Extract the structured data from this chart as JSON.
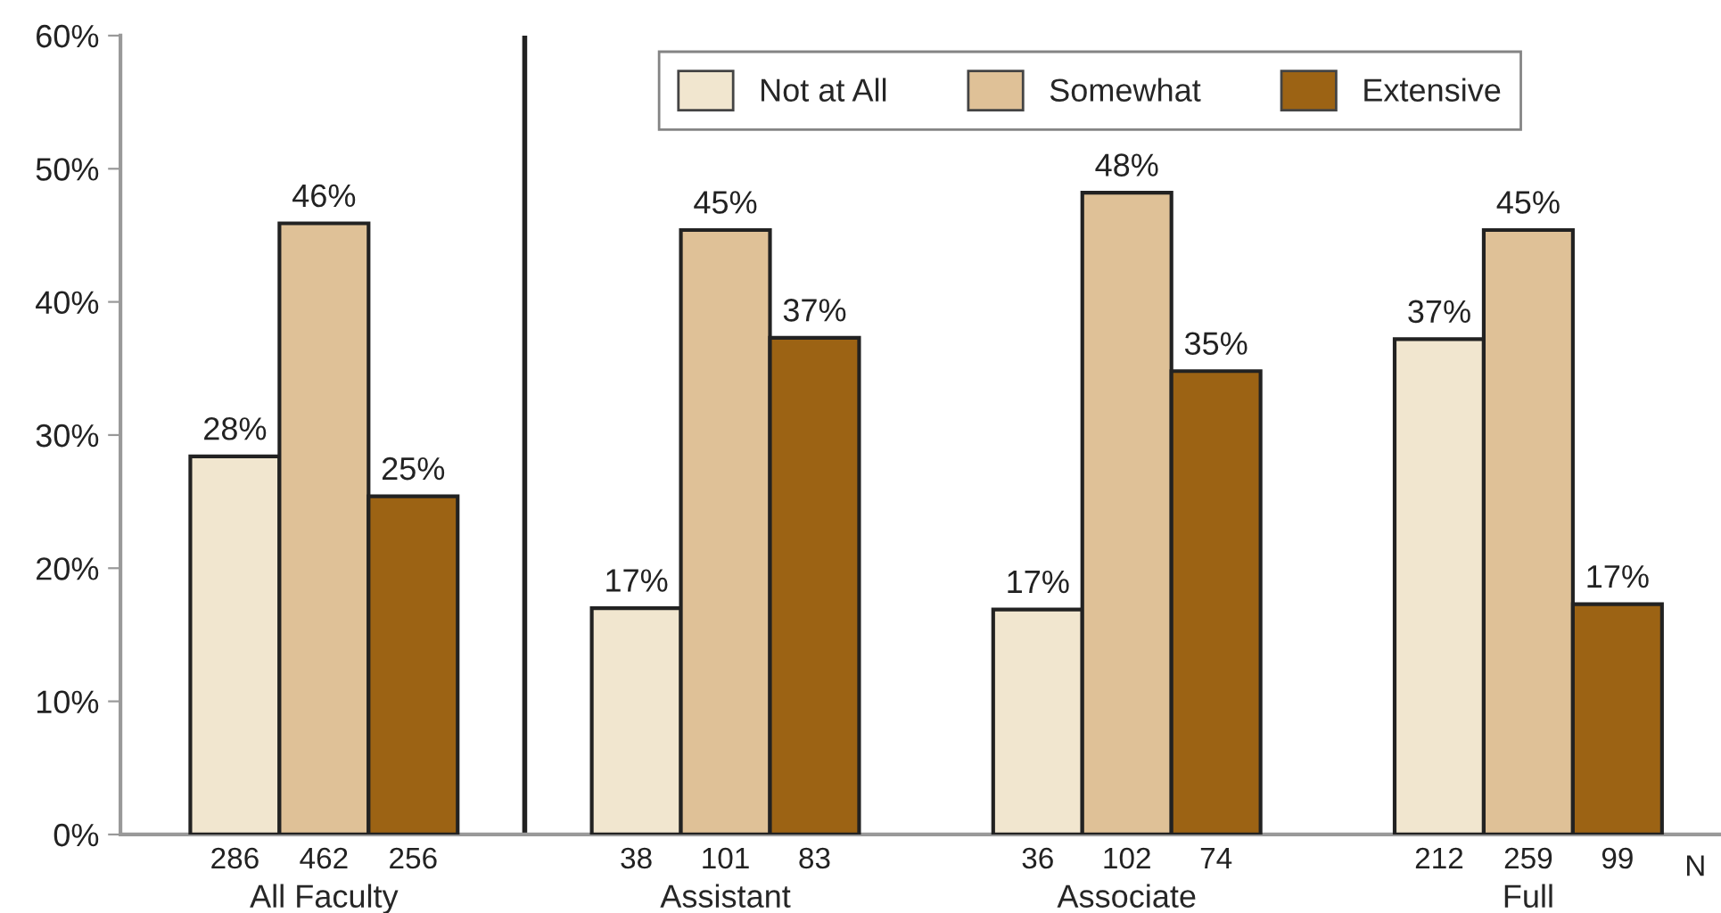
{
  "chart_data": {
    "type": "bar",
    "categories": [
      "All Faculty",
      "Assistant",
      "Associate",
      "Full"
    ],
    "series": [
      {
        "name": "Not at All",
        "color": "#f1e6cf",
        "values": [
          28.4,
          17.0,
          16.9,
          37.2
        ],
        "value_labels": [
          "28%",
          "17%",
          "17%",
          "37%"
        ]
      },
      {
        "name": "Somewhat",
        "color": "#dfc197",
        "values": [
          45.9,
          45.4,
          48.2,
          45.4
        ],
        "value_labels": [
          "46%",
          "45%",
          "48%",
          "45%"
        ]
      },
      {
        "name": "Extensive",
        "color": "#9c6314",
        "values": [
          25.4,
          37.3,
          34.8,
          17.3
        ],
        "value_labels": [
          "25%",
          "37%",
          "35%",
          "17%"
        ]
      }
    ],
    "annotations": [
      "286",
      "462",
      "256",
      "38",
      "101",
      "83",
      "36",
      "102",
      "74",
      "212",
      "259",
      "99",
      "N"
    ],
    "ylim": [
      0,
      60
    ],
    "yticks": [
      {
        "value": 0,
        "label": "0%"
      },
      {
        "value": 10,
        "label": "10%"
      },
      {
        "value": 20,
        "label": "20%"
      },
      {
        "value": 30,
        "label": "30%"
      },
      {
        "value": 40,
        "label": "40%"
      },
      {
        "value": 50,
        "label": "50%"
      },
      {
        "value": 60,
        "label": "60%"
      }
    ],
    "grid": false,
    "legend": "top right"
  }
}
